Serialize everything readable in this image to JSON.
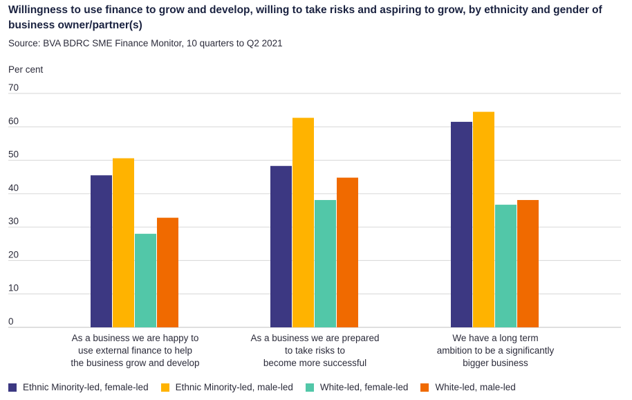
{
  "chart_data": {
    "type": "bar",
    "title": "Willingness to use finance to grow and develop, willing to take risks and aspiring to grow, by ethnicity and gender of business owner/partner(s)",
    "subtitle": "Source: BVA BDRC SME Finance Monitor, 10 quarters to Q2 2021",
    "ylabel": "Per cent",
    "ylim": [
      0,
      70
    ],
    "yticks": [
      "0",
      "10",
      "20",
      "30",
      "40",
      "50",
      "60",
      "70"
    ],
    "grid": true,
    "legend_position": "bottom",
    "categories": [
      [
        "As a business we are happy to",
        "use external finance to help",
        "the business grow and develop"
      ],
      [
        "As a business we are prepared",
        "to take risks to",
        "become more successful"
      ],
      [
        "We have a long term",
        "ambition to be a significantly",
        "bigger business"
      ]
    ],
    "series": [
      {
        "name": "Ethnic Minority-led, female-led",
        "color": "#3c3882",
        "values": [
          45.5,
          48.3,
          61.5
        ]
      },
      {
        "name": "Ethnic Minority-led, male-led",
        "color": "#ffb300",
        "values": [
          50.6,
          62.7,
          64.5
        ]
      },
      {
        "name": "White-led, female-led",
        "color": "#52c7a8",
        "values": [
          28.0,
          38.1,
          36.7
        ]
      },
      {
        "name": "White-led, male-led",
        "color": "#f06a00",
        "values": [
          32.8,
          44.8,
          38.1
        ]
      }
    ]
  }
}
